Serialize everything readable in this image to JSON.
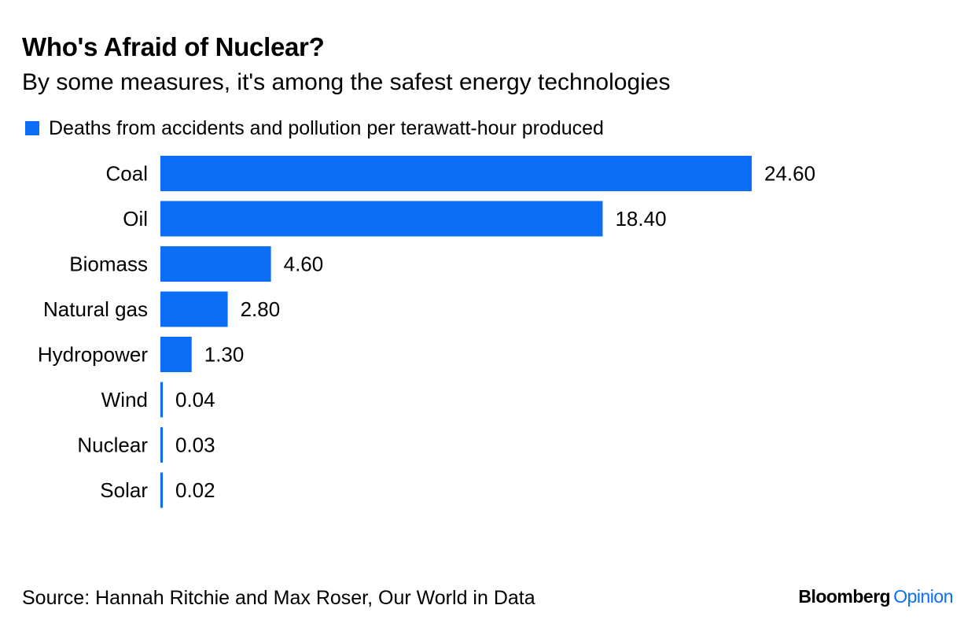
{
  "header": {
    "title": "Who's Afraid of Nuclear?",
    "subtitle": "By some measures, it's among the safest energy technologies"
  },
  "footer": {
    "source": "Source: Hannah Ritchie and Max Roser, Our World in Data",
    "brand_main": "Bloomberg",
    "brand_accent": "Opinion"
  },
  "colors": {
    "bar": "#0c6ef5",
    "text": "#000000"
  },
  "chart_data": {
    "type": "bar",
    "orientation": "horizontal",
    "title": "Who's Afraid of Nuclear?",
    "subtitle": "By some measures, it's among the safest energy technologies",
    "categories": [
      "Coal",
      "Oil",
      "Biomass",
      "Natural gas",
      "Hydropower",
      "Wind",
      "Nuclear",
      "Solar"
    ],
    "series": [
      {
        "name": "Deaths from accidents and pollution per terawatt-hour produced",
        "values": [
          24.6,
          18.4,
          4.6,
          2.8,
          1.3,
          0.04,
          0.03,
          0.02
        ],
        "labels": [
          "24.60",
          "18.40",
          "4.60",
          "2.80",
          "1.30",
          "0.04",
          "0.03",
          "0.02"
        ]
      }
    ],
    "xlabel": "",
    "ylabel": "",
    "xlim": [
      0,
      24.6
    ],
    "grid": false,
    "legend": "top-left"
  }
}
